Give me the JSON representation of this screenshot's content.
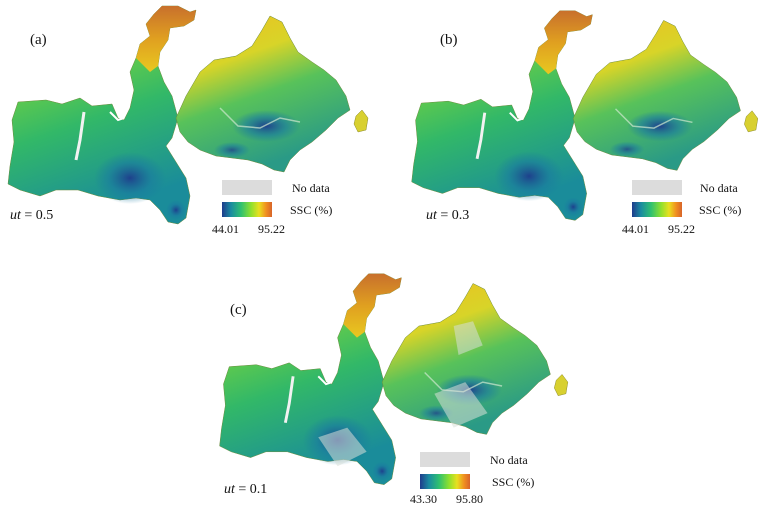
{
  "panels": [
    {
      "id": "a",
      "letter": "(a)",
      "ut_var": "ut",
      "ut_text": " = 0.5",
      "legend": {
        "nodata": "No data",
        "ssc": "SSC (%)",
        "min": "44.01",
        "max": "95.22"
      }
    },
    {
      "id": "b",
      "letter": "(b)",
      "ut_var": "ut",
      "ut_text": " = 0.3",
      "legend": {
        "nodata": "No data",
        "ssc": "SSC (%)",
        "min": "44.01",
        "max": "95.22"
      }
    },
    {
      "id": "c",
      "letter": "(c)",
      "ut_var": "ut",
      "ut_text": " = 0.1",
      "legend": {
        "nodata": "No data",
        "ssc": "SSC (%)",
        "min": "43.30",
        "max": "95.80"
      }
    }
  ],
  "colors": {
    "low": "#1e3c8c",
    "mid": "#4ccb4c",
    "high": "#e4b81c",
    "top": "#c8702c",
    "nodata": "#dcdcdc"
  }
}
